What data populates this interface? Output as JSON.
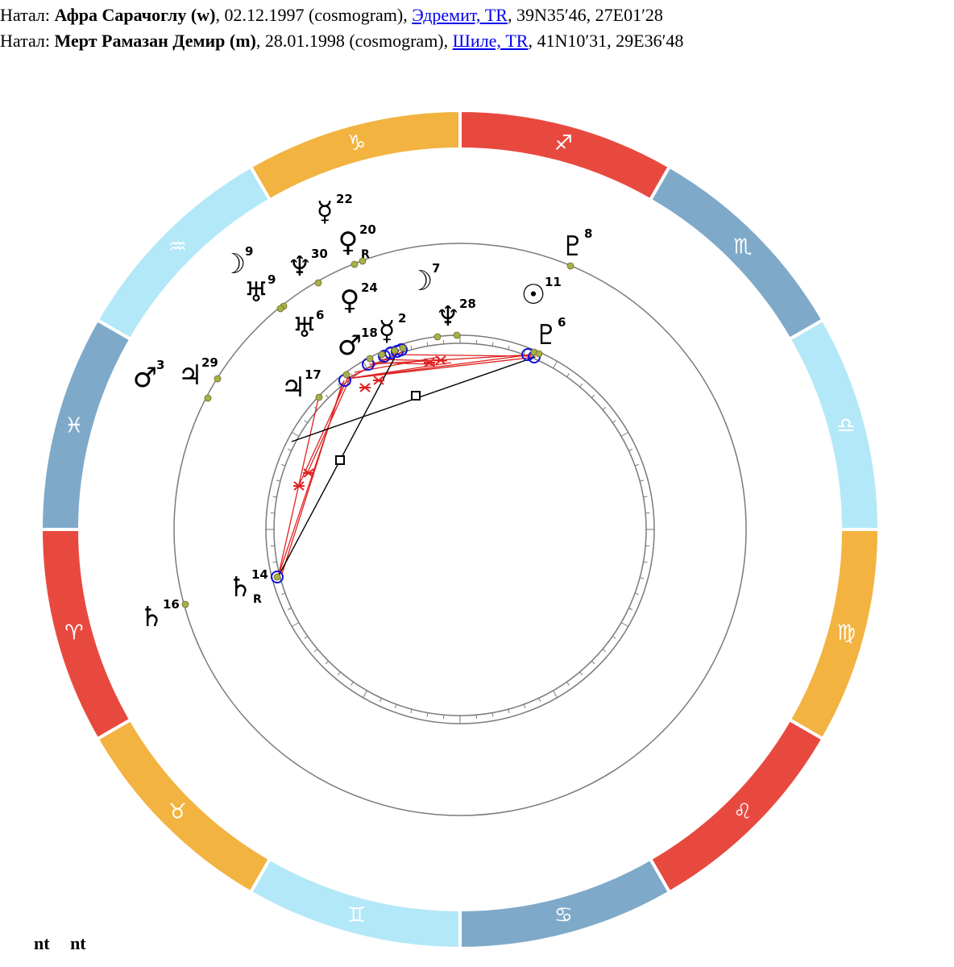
{
  "header": {
    "person1": {
      "prefix": "Натал:",
      "name": "Афра Сарачоглу (w)",
      "date": ", 02.12.1997 (cosmogram), ",
      "place": "Эдремит, TR",
      "coords": ", 39N35′46, 27E01′28"
    },
    "person2": {
      "prefix": "Натал:",
      "name": "Мерт Рамазан Демир (m)",
      "date": ", 28.01.1998 (cosmogram), ",
      "place": "Шиле, TR",
      "coords": ", 41N10′31, 29E36′48"
    }
  },
  "colors": {
    "fire": "#e8493f",
    "earth": "#f2b340",
    "air": "#b3e8f8",
    "water": "#7fa9c9",
    "planet_dot": "#a9b045",
    "circle_stroke": "#7a7a7a",
    "aspect_red": "#e02020",
    "aspect_black": "#000000",
    "aspect_circle": "#1010dd"
  },
  "zodiac": [
    {
      "name": "sagittarius",
      "glyph": "♐",
      "element": "fire"
    },
    {
      "name": "scorpio",
      "glyph": "♏",
      "element": "water"
    },
    {
      "name": "libra",
      "glyph": "♎",
      "element": "air"
    },
    {
      "name": "virgo",
      "glyph": "♍",
      "element": "earth"
    },
    {
      "name": "leo",
      "glyph": "♌",
      "element": "fire"
    },
    {
      "name": "cancer",
      "glyph": "♋",
      "element": "water"
    },
    {
      "name": "gemini",
      "glyph": "♊",
      "element": "air"
    },
    {
      "name": "taurus",
      "glyph": "♉",
      "element": "earth"
    },
    {
      "name": "aries",
      "glyph": "♈",
      "element": "fire"
    },
    {
      "name": "pisces",
      "glyph": "♓",
      "element": "water"
    },
    {
      "name": "aquarius",
      "glyph": "♒",
      "element": "air"
    },
    {
      "name": "capricorn",
      "glyph": "♑",
      "element": "earth"
    }
  ],
  "outer_planets": [
    {
      "name": "mercury",
      "glyph": "☿",
      "deg": "22",
      "retro": ""
    },
    {
      "name": "venus",
      "glyph": "♀",
      "deg": "20",
      "retro": "R"
    },
    {
      "name": "moon",
      "glyph": "☽",
      "deg": "9",
      "retro": ""
    },
    {
      "name": "neptune",
      "glyph": "♆",
      "deg": "30",
      "retro": ""
    },
    {
      "name": "uranus",
      "glyph": "♅",
      "deg": "9",
      "retro": ""
    },
    {
      "name": "pluto",
      "glyph": "♇",
      "deg": "8",
      "retro": ""
    },
    {
      "name": "sun",
      "glyph": "☉",
      "deg": "11",
      "retro": ""
    },
    {
      "name": "mars",
      "glyph": "♂",
      "deg": "3",
      "retro": ""
    },
    {
      "name": "jupiter",
      "glyph": "♃",
      "deg": "29",
      "retro": ""
    },
    {
      "name": "saturn",
      "glyph": "♄",
      "deg": "16",
      "retro": ""
    }
  ],
  "inner_planets": [
    {
      "name": "moon",
      "glyph": "☽",
      "deg": "7",
      "retro": ""
    },
    {
      "name": "venus",
      "glyph": "♀",
      "deg": "24",
      "retro": ""
    },
    {
      "name": "uranus",
      "glyph": "♅",
      "deg": "6",
      "retro": ""
    },
    {
      "name": "mars",
      "glyph": "♂",
      "deg": "18",
      "retro": ""
    },
    {
      "name": "mercury",
      "glyph": "☿",
      "deg": "2",
      "retro": ""
    },
    {
      "name": "neptune",
      "glyph": "♆",
      "deg": "28",
      "retro": ""
    },
    {
      "name": "pluto",
      "glyph": "♇",
      "deg": "6",
      "retro": ""
    },
    {
      "name": "jupiter",
      "glyph": "♃",
      "deg": "17",
      "retro": ""
    },
    {
      "name": "saturn",
      "glyph": "♄",
      "deg": "14",
      "retro": "R"
    }
  ],
  "footer": {
    "left": "nt",
    "right": "nt"
  }
}
